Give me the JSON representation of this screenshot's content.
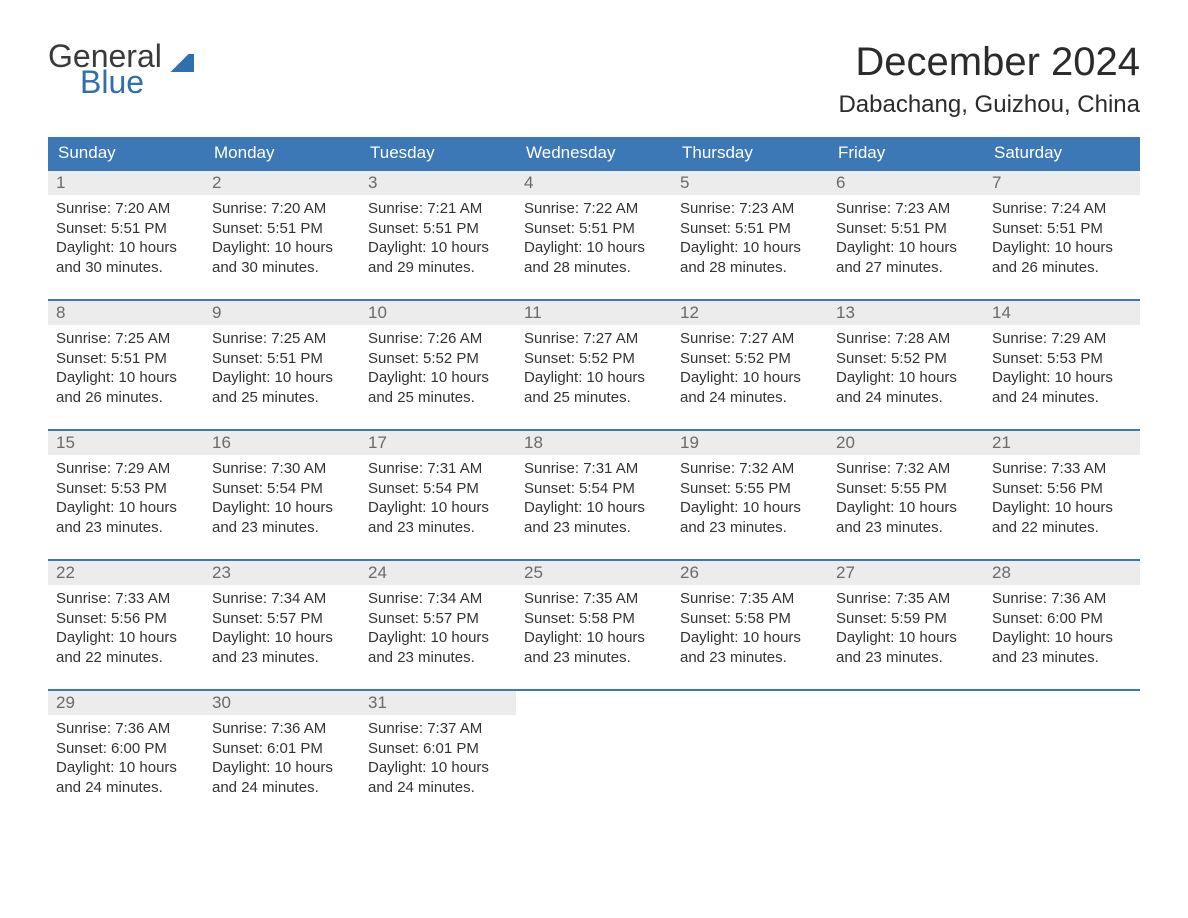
{
  "logo": {
    "line1": "General",
    "line2": "Blue"
  },
  "title": "December 2024",
  "location": "Dabachang, Guizhou, China",
  "colors": {
    "header_bg": "#3b78b5",
    "header_text": "#ffffff",
    "daynum_bg": "#ececec",
    "daynum_text": "#6a6a6a",
    "body_text": "#333333",
    "accent_blue": "#2f6fae",
    "page_bg": "#ffffff"
  },
  "weekdays": [
    "Sunday",
    "Monday",
    "Tuesday",
    "Wednesday",
    "Thursday",
    "Friday",
    "Saturday"
  ],
  "weeks": [
    [
      {
        "n": "1",
        "sunrise": "Sunrise: 7:20 AM",
        "sunset": "Sunset: 5:51 PM",
        "day1": "Daylight: 10 hours",
        "day2": "and 30 minutes."
      },
      {
        "n": "2",
        "sunrise": "Sunrise: 7:20 AM",
        "sunset": "Sunset: 5:51 PM",
        "day1": "Daylight: 10 hours",
        "day2": "and 30 minutes."
      },
      {
        "n": "3",
        "sunrise": "Sunrise: 7:21 AM",
        "sunset": "Sunset: 5:51 PM",
        "day1": "Daylight: 10 hours",
        "day2": "and 29 minutes."
      },
      {
        "n": "4",
        "sunrise": "Sunrise: 7:22 AM",
        "sunset": "Sunset: 5:51 PM",
        "day1": "Daylight: 10 hours",
        "day2": "and 28 minutes."
      },
      {
        "n": "5",
        "sunrise": "Sunrise: 7:23 AM",
        "sunset": "Sunset: 5:51 PM",
        "day1": "Daylight: 10 hours",
        "day2": "and 28 minutes."
      },
      {
        "n": "6",
        "sunrise": "Sunrise: 7:23 AM",
        "sunset": "Sunset: 5:51 PM",
        "day1": "Daylight: 10 hours",
        "day2": "and 27 minutes."
      },
      {
        "n": "7",
        "sunrise": "Sunrise: 7:24 AM",
        "sunset": "Sunset: 5:51 PM",
        "day1": "Daylight: 10 hours",
        "day2": "and 26 minutes."
      }
    ],
    [
      {
        "n": "8",
        "sunrise": "Sunrise: 7:25 AM",
        "sunset": "Sunset: 5:51 PM",
        "day1": "Daylight: 10 hours",
        "day2": "and 26 minutes."
      },
      {
        "n": "9",
        "sunrise": "Sunrise: 7:25 AM",
        "sunset": "Sunset: 5:51 PM",
        "day1": "Daylight: 10 hours",
        "day2": "and 25 minutes."
      },
      {
        "n": "10",
        "sunrise": "Sunrise: 7:26 AM",
        "sunset": "Sunset: 5:52 PM",
        "day1": "Daylight: 10 hours",
        "day2": "and 25 minutes."
      },
      {
        "n": "11",
        "sunrise": "Sunrise: 7:27 AM",
        "sunset": "Sunset: 5:52 PM",
        "day1": "Daylight: 10 hours",
        "day2": "and 25 minutes."
      },
      {
        "n": "12",
        "sunrise": "Sunrise: 7:27 AM",
        "sunset": "Sunset: 5:52 PM",
        "day1": "Daylight: 10 hours",
        "day2": "and 24 minutes."
      },
      {
        "n": "13",
        "sunrise": "Sunrise: 7:28 AM",
        "sunset": "Sunset: 5:52 PM",
        "day1": "Daylight: 10 hours",
        "day2": "and 24 minutes."
      },
      {
        "n": "14",
        "sunrise": "Sunrise: 7:29 AM",
        "sunset": "Sunset: 5:53 PM",
        "day1": "Daylight: 10 hours",
        "day2": "and 24 minutes."
      }
    ],
    [
      {
        "n": "15",
        "sunrise": "Sunrise: 7:29 AM",
        "sunset": "Sunset: 5:53 PM",
        "day1": "Daylight: 10 hours",
        "day2": "and 23 minutes."
      },
      {
        "n": "16",
        "sunrise": "Sunrise: 7:30 AM",
        "sunset": "Sunset: 5:54 PM",
        "day1": "Daylight: 10 hours",
        "day2": "and 23 minutes."
      },
      {
        "n": "17",
        "sunrise": "Sunrise: 7:31 AM",
        "sunset": "Sunset: 5:54 PM",
        "day1": "Daylight: 10 hours",
        "day2": "and 23 minutes."
      },
      {
        "n": "18",
        "sunrise": "Sunrise: 7:31 AM",
        "sunset": "Sunset: 5:54 PM",
        "day1": "Daylight: 10 hours",
        "day2": "and 23 minutes."
      },
      {
        "n": "19",
        "sunrise": "Sunrise: 7:32 AM",
        "sunset": "Sunset: 5:55 PM",
        "day1": "Daylight: 10 hours",
        "day2": "and 23 minutes."
      },
      {
        "n": "20",
        "sunrise": "Sunrise: 7:32 AM",
        "sunset": "Sunset: 5:55 PM",
        "day1": "Daylight: 10 hours",
        "day2": "and 23 minutes."
      },
      {
        "n": "21",
        "sunrise": "Sunrise: 7:33 AM",
        "sunset": "Sunset: 5:56 PM",
        "day1": "Daylight: 10 hours",
        "day2": "and 22 minutes."
      }
    ],
    [
      {
        "n": "22",
        "sunrise": "Sunrise: 7:33 AM",
        "sunset": "Sunset: 5:56 PM",
        "day1": "Daylight: 10 hours",
        "day2": "and 22 minutes."
      },
      {
        "n": "23",
        "sunrise": "Sunrise: 7:34 AM",
        "sunset": "Sunset: 5:57 PM",
        "day1": "Daylight: 10 hours",
        "day2": "and 23 minutes."
      },
      {
        "n": "24",
        "sunrise": "Sunrise: 7:34 AM",
        "sunset": "Sunset: 5:57 PM",
        "day1": "Daylight: 10 hours",
        "day2": "and 23 minutes."
      },
      {
        "n": "25",
        "sunrise": "Sunrise: 7:35 AM",
        "sunset": "Sunset: 5:58 PM",
        "day1": "Daylight: 10 hours",
        "day2": "and 23 minutes."
      },
      {
        "n": "26",
        "sunrise": "Sunrise: 7:35 AM",
        "sunset": "Sunset: 5:58 PM",
        "day1": "Daylight: 10 hours",
        "day2": "and 23 minutes."
      },
      {
        "n": "27",
        "sunrise": "Sunrise: 7:35 AM",
        "sunset": "Sunset: 5:59 PM",
        "day1": "Daylight: 10 hours",
        "day2": "and 23 minutes."
      },
      {
        "n": "28",
        "sunrise": "Sunrise: 7:36 AM",
        "sunset": "Sunset: 6:00 PM",
        "day1": "Daylight: 10 hours",
        "day2": "and 23 minutes."
      }
    ],
    [
      {
        "n": "29",
        "sunrise": "Sunrise: 7:36 AM",
        "sunset": "Sunset: 6:00 PM",
        "day1": "Daylight: 10 hours",
        "day2": "and 24 minutes."
      },
      {
        "n": "30",
        "sunrise": "Sunrise: 7:36 AM",
        "sunset": "Sunset: 6:01 PM",
        "day1": "Daylight: 10 hours",
        "day2": "and 24 minutes."
      },
      {
        "n": "31",
        "sunrise": "Sunrise: 7:37 AM",
        "sunset": "Sunset: 6:01 PM",
        "day1": "Daylight: 10 hours",
        "day2": "and 24 minutes."
      },
      null,
      null,
      null,
      null
    ]
  ]
}
